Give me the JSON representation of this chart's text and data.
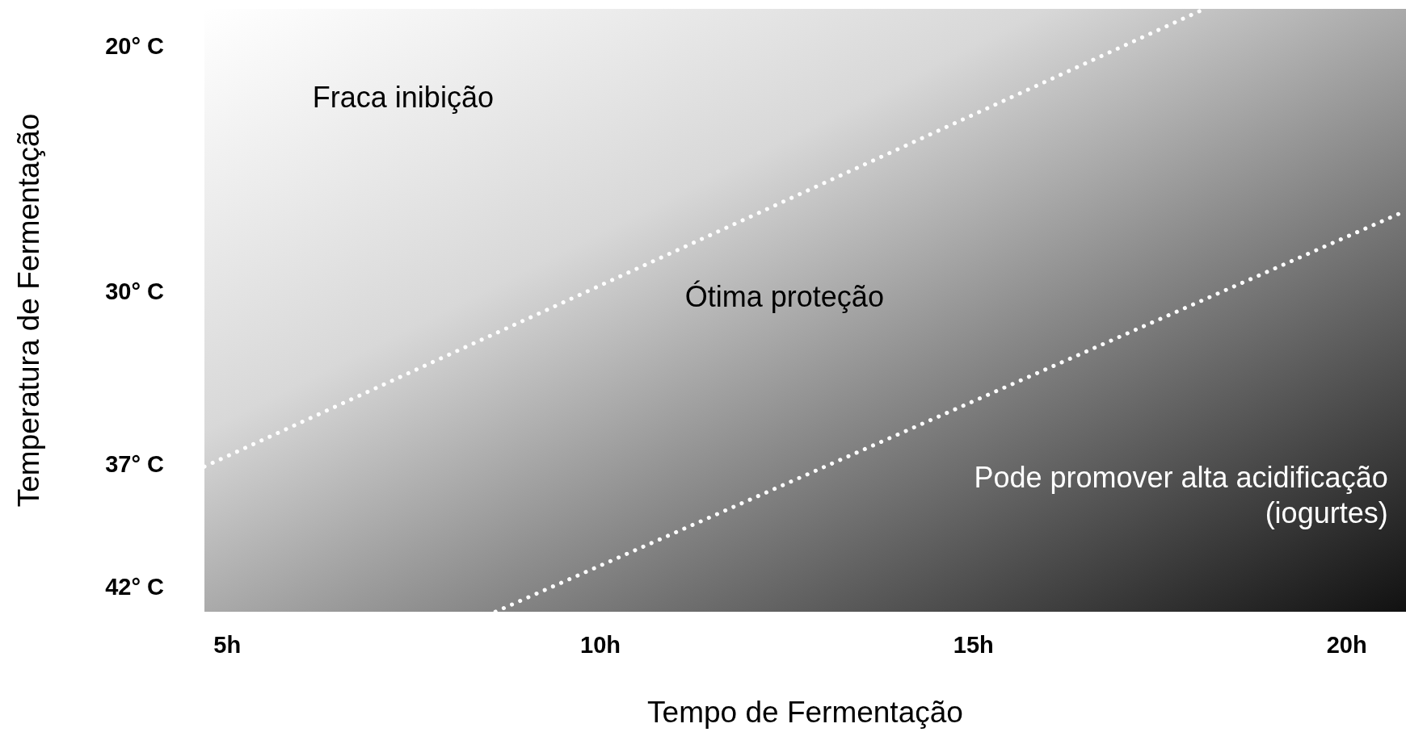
{
  "chart_data": {
    "type": "line",
    "xlabel": "Tempo de Fermentação",
    "ylabel": "Temperatura de Fermentação",
    "xlim": [
      4.7,
      20.8
    ],
    "ylim": [
      43,
      18.5
    ],
    "xticks": [
      {
        "value": 5,
        "label": "5h"
      },
      {
        "value": 10,
        "label": "10h"
      },
      {
        "value": 15,
        "label": "15h"
      },
      {
        "value": 20,
        "label": "20h"
      }
    ],
    "yticks": [
      {
        "value": 20,
        "label": "20° C"
      },
      {
        "value": 30,
        "label": "30° C"
      },
      {
        "value": 37,
        "label": "37° C"
      },
      {
        "value": 42,
        "label": "42° C"
      }
    ],
    "relative": false,
    "grid": false,
    "marker": "none",
    "line_style": "dotted",
    "series": [
      {
        "color": "#ffffff",
        "x": [
          4.7,
          18.1
        ],
        "values": [
          37.1,
          18.5
        ]
      },
      {
        "color": "#ffffff",
        "x": [
          8.6,
          20.8
        ],
        "values": [
          43,
          26.7
        ]
      }
    ],
    "annotations": [
      "Fraca inibição",
      "Ótima proteção",
      "Pode promover alta acidificação (iogurtes)"
    ]
  }
}
